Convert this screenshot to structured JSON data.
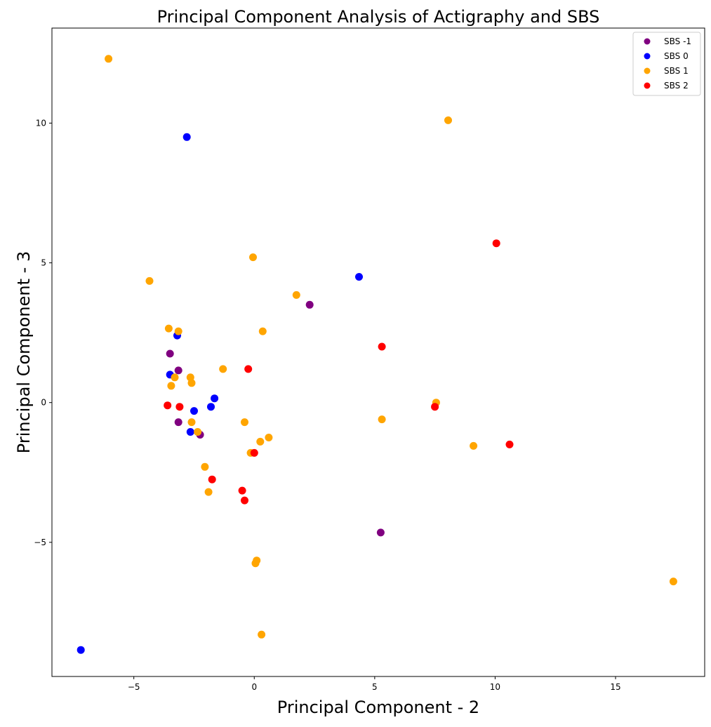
{
  "chart_data": {
    "type": "scatter",
    "title": "Principal Component Analysis of Actigraphy and SBS",
    "xlabel": "Principal Component - 2",
    "ylabel": "Principal Component - 3",
    "xlim": [
      -8.4,
      18.7
    ],
    "ylim": [
      -9.8,
      13.4
    ],
    "xticks": [
      -5,
      0,
      5,
      10,
      15
    ],
    "yticks": [
      -5,
      0,
      5,
      10
    ],
    "grid": false,
    "legend_position": "top-right",
    "series": [
      {
        "name": "SBS -1",
        "color": "#800080",
        "points": [
          [
            2.3,
            3.5
          ],
          [
            -3.5,
            1.75
          ],
          [
            -3.15,
            1.15
          ],
          [
            -3.15,
            -0.7
          ],
          [
            -2.25,
            -1.15
          ],
          [
            5.25,
            -4.65
          ]
        ]
      },
      {
        "name": "SBS 0",
        "color": "#0000ff",
        "points": [
          [
            -2.8,
            9.5
          ],
          [
            -7.2,
            -8.85
          ],
          [
            4.35,
            4.5
          ],
          [
            -3.2,
            2.4
          ],
          [
            -3.5,
            1.0
          ],
          [
            -1.65,
            0.15
          ],
          [
            -2.5,
            -0.3
          ],
          [
            -1.8,
            -0.15
          ],
          [
            -2.65,
            -1.05
          ]
        ]
      },
      {
        "name": "SBS 1",
        "color": "#ffa500",
        "points": [
          [
            -6.05,
            12.3
          ],
          [
            8.05,
            10.1
          ],
          [
            -0.05,
            5.2
          ],
          [
            -4.35,
            4.35
          ],
          [
            1.75,
            3.85
          ],
          [
            -3.55,
            2.65
          ],
          [
            -3.15,
            2.55
          ],
          [
            0.35,
            2.55
          ],
          [
            -1.3,
            1.2
          ],
          [
            -3.3,
            0.9
          ],
          [
            -2.65,
            0.9
          ],
          [
            -2.6,
            0.7
          ],
          [
            -3.45,
            0.6
          ],
          [
            7.55,
            0.0
          ],
          [
            -0.4,
            -0.7
          ],
          [
            5.3,
            -0.6
          ],
          [
            -2.6,
            -0.7
          ],
          [
            -2.35,
            -1.05
          ],
          [
            0.6,
            -1.25
          ],
          [
            0.25,
            -1.4
          ],
          [
            9.1,
            -1.55
          ],
          [
            -0.15,
            -1.8
          ],
          [
            -2.05,
            -2.3
          ],
          [
            -1.9,
            -3.2
          ],
          [
            0.1,
            -5.65
          ],
          [
            0.05,
            -5.75
          ],
          [
            17.4,
            -6.4
          ],
          [
            0.3,
            -8.3
          ]
        ]
      },
      {
        "name": "SBS 2",
        "color": "#ff0000",
        "points": [
          [
            10.05,
            5.7
          ],
          [
            5.3,
            2.0
          ],
          [
            -0.25,
            1.2
          ],
          [
            -3.6,
            -0.1
          ],
          [
            -3.1,
            -0.15
          ],
          [
            7.5,
            -0.15
          ],
          [
            10.6,
            -1.5
          ],
          [
            0.0,
            -1.8
          ],
          [
            -1.75,
            -2.75
          ],
          [
            -0.5,
            -3.15
          ],
          [
            -0.4,
            -3.5
          ]
        ]
      }
    ]
  }
}
